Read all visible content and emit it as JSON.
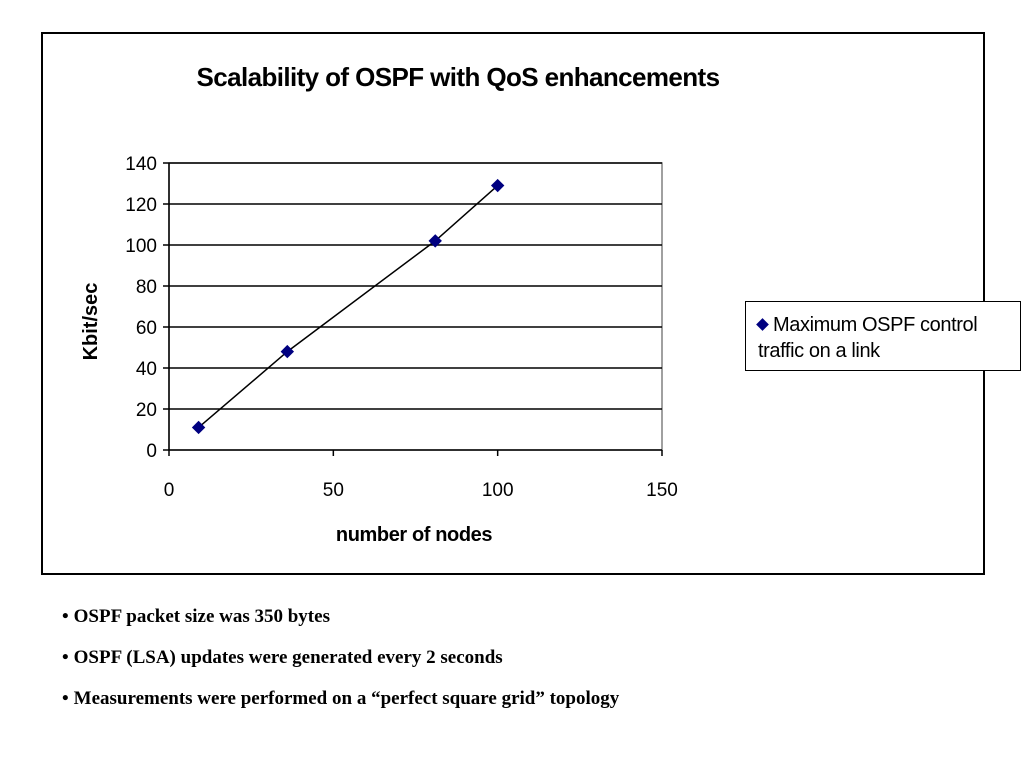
{
  "chart_data": {
    "type": "scatter",
    "title": "Scalability of OSPF with QoS enhancements",
    "xlabel": "number of nodes",
    "ylabel": "Kbit/sec",
    "xlim": [
      0,
      150
    ],
    "ylim": [
      0,
      140
    ],
    "x_ticks": [
      0,
      50,
      100,
      150
    ],
    "y_ticks": [
      0,
      20,
      40,
      60,
      80,
      100,
      120,
      140
    ],
    "grid": "horizontal",
    "legend_position": "right",
    "series": [
      {
        "name": "Maximum OSPF control traffic on a link",
        "color": "#000080",
        "marker": "diamond",
        "line": "connected",
        "x": [
          9,
          36,
          81,
          100
        ],
        "y": [
          11,
          48,
          102,
          129
        ]
      }
    ]
  },
  "legend": {
    "line1": "Maximum OSPF control",
    "line2": "traffic on a link"
  },
  "notes": [
    "OSPF packet size was 350 bytes",
    "OSPF (LSA) updates were generated every 2 seconds",
    "Measurements were performed on a “perfect square grid” topology"
  ],
  "bullet": "•"
}
